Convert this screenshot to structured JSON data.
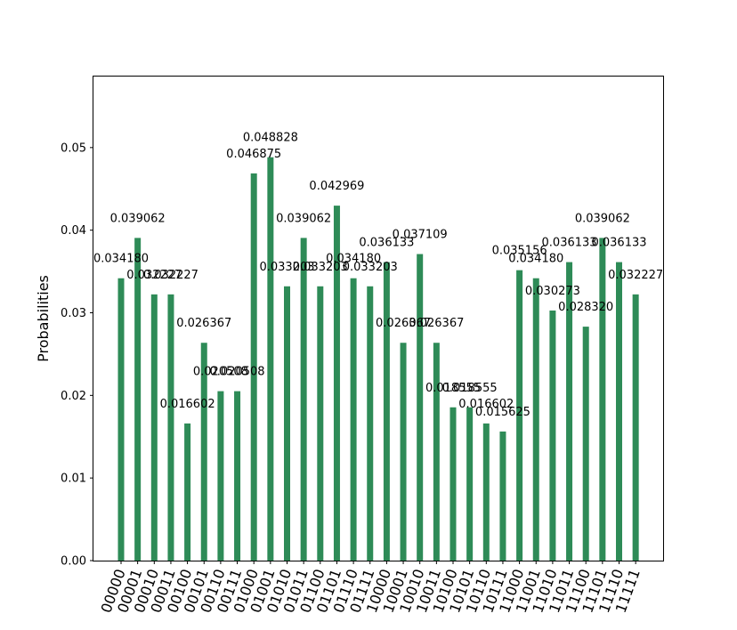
{
  "chart_data": {
    "type": "bar",
    "title": "",
    "xlabel": "",
    "ylabel": "Probabilities",
    "ylim": [
      0,
      0.0586
    ],
    "yticks": [
      "0.00",
      "0.01",
      "0.02",
      "0.03",
      "0.04",
      "0.05"
    ],
    "bar_color": "#2e8b57",
    "grid": false,
    "categories": [
      "00000",
      "00001",
      "00010",
      "00011",
      "00100",
      "00101",
      "00110",
      "00111",
      "01000",
      "01001",
      "01010",
      "01011",
      "01100",
      "01101",
      "01110",
      "01111",
      "10000",
      "10001",
      "10010",
      "10011",
      "10100",
      "10101",
      "10110",
      "10111",
      "11000",
      "11001",
      "11010",
      "11011",
      "11100",
      "11101",
      "11110",
      "11111"
    ],
    "values": [
      0.03418,
      0.039062,
      0.032227,
      0.032227,
      0.016602,
      0.026367,
      0.020508,
      0.020508,
      0.046875,
      0.048828,
      0.033203,
      0.039062,
      0.033203,
      0.042969,
      0.03418,
      0.033203,
      0.036133,
      0.026367,
      0.037109,
      0.026367,
      0.018555,
      0.018555,
      0.016602,
      0.015625,
      0.035156,
      0.03418,
      0.030273,
      0.036133,
      0.02832,
      0.039062,
      0.036133,
      0.032227
    ],
    "labels": [
      "0.034180",
      "0.039062",
      "0.032227",
      "0.032227",
      "0.016602",
      "0.026367",
      "0.020508",
      "0.020508",
      "0.046875",
      "0.048828",
      "0.033203",
      "0.039062",
      "0.033203",
      "0.042969",
      "0.034180",
      "0.033203",
      "0.036133",
      "0.026367",
      "0.037109",
      "0.026367",
      "0.018555",
      "0.018555",
      "0.016602",
      "0.015625",
      "0.035156",
      "0.034180",
      "0.030273",
      "0.036133",
      "0.028320",
      "0.039062",
      "0.036133",
      "0.032227"
    ]
  }
}
